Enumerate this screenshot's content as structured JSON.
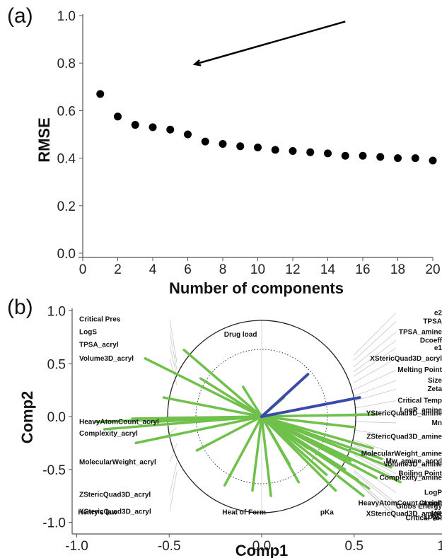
{
  "panels": {
    "a_label": "(a)",
    "b_label": "(b)"
  },
  "chart_data": [
    {
      "type": "scatter",
      "panel": "(a)",
      "xlabel": "Number of components",
      "ylabel": "RMSE",
      "xlim": [
        0,
        20
      ],
      "ylim": [
        0,
        1.0
      ],
      "x_ticks": [
        0,
        2,
        4,
        6,
        8,
        10,
        12,
        14,
        16,
        18,
        20
      ],
      "y_ticks": [
        0.0,
        0.2,
        0.4,
        0.6,
        0.8,
        1.0
      ],
      "y_tick_labels": [
        "0.0",
        "0.2",
        "0.4",
        "0.6",
        "0.8",
        "1.0"
      ],
      "x": [
        1,
        2,
        3,
        4,
        5,
        6,
        7,
        8,
        9,
        10,
        11,
        12,
        13,
        14,
        15,
        16,
        17,
        18,
        19,
        20
      ],
      "y": [
        0.67,
        0.575,
        0.54,
        0.53,
        0.52,
        0.5,
        0.47,
        0.46,
        0.45,
        0.445,
        0.435,
        0.43,
        0.425,
        0.42,
        0.41,
        0.41,
        0.405,
        0.4,
        0.4,
        0.39
      ],
      "arrow": {
        "from": [
          15,
          0.975
        ],
        "to": [
          6.4,
          0.795
        ]
      },
      "colors": {
        "marker": "#000000",
        "axis": "#555555"
      }
    },
    {
      "type": "biplot",
      "panel": "(b)",
      "xlabel": "Comp1",
      "ylabel": "Comp2",
      "xlim": [
        -1.0,
        1.0
      ],
      "ylim": [
        -1.0,
        1.0
      ],
      "x_ticks": [
        -1.0,
        -0.5,
        0.0,
        0.5,
        1.0
      ],
      "y_ticks": [
        -1.0,
        -0.5,
        0.0,
        0.5,
        1.0
      ],
      "x_tick_labels": [
        "-1.0",
        "-0.5",
        "0.0",
        "0.5",
        "1.0"
      ],
      "y_tick_labels": [
        "-1.0",
        "-0.5",
        "0.0",
        "0.5",
        "1.0"
      ],
      "circles": [
        1.0,
        0.7
      ],
      "colors": {
        "green": "#70c04c",
        "blue": "#3a4aa8",
        "leader": "#c8c8c8",
        "circle": "#222222"
      },
      "loadings_blue": [
        {
          "x": 0.25,
          "y": 0.4
        },
        {
          "x": 0.53,
          "y": 0.18
        }
      ],
      "loadings_green": [
        {
          "x": -0.63,
          "y": 0.55
        },
        {
          "x": -0.42,
          "y": 0.63
        },
        {
          "x": -0.33,
          "y": 0.36
        },
        {
          "x": -0.53,
          "y": 0.18
        },
        {
          "x": -0.85,
          "y": -0.12
        },
        {
          "x": -0.9,
          "y": -0.05
        },
        {
          "x": -0.7,
          "y": -0.02
        },
        {
          "x": -0.6,
          "y": -0.05
        },
        {
          "x": -0.68,
          "y": -0.25
        },
        {
          "x": -0.35,
          "y": -0.32
        },
        {
          "x": -0.1,
          "y": 0.28
        },
        {
          "x": -0.2,
          "y": -0.65
        },
        {
          "x": -0.05,
          "y": -0.7
        },
        {
          "x": 0.05,
          "y": -0.75
        },
        {
          "x": 0.15,
          "y": -0.45
        },
        {
          "x": 0.12,
          "y": 0.18
        },
        {
          "x": 0.3,
          "y": -0.2
        },
        {
          "x": 0.38,
          "y": -0.35
        },
        {
          "x": 0.45,
          "y": -0.5
        },
        {
          "x": 0.52,
          "y": -0.6
        },
        {
          "x": 0.58,
          "y": -0.68
        },
        {
          "x": 0.62,
          "y": -0.58
        },
        {
          "x": 0.75,
          "y": -0.62
        },
        {
          "x": 0.55,
          "y": -0.75
        },
        {
          "x": 0.48,
          "y": -0.42
        },
        {
          "x": 0.6,
          "y": -0.3
        },
        {
          "x": 0.5,
          "y": -0.1
        },
        {
          "x": 0.62,
          "y": 0.02
        },
        {
          "x": 0.35,
          "y": -0.55
        },
        {
          "x": 0.25,
          "y": -0.3
        },
        {
          "x": 0.2,
          "y": -0.62
        },
        {
          "x": 0.4,
          "y": -0.7
        },
        {
          "x": 0.65,
          "y": -0.4
        },
        {
          "x": 0.7,
          "y": -0.48
        }
      ],
      "labels_left": [
        {
          "text": "Critical Pres",
          "y": 0.9
        },
        {
          "text": "LogS",
          "y": 0.78
        },
        {
          "text": "TPSA_acryl",
          "y": 0.66
        },
        {
          "text": "Volume3D_acryl",
          "y": 0.53
        },
        {
          "text": "HeavyAtomCount_acryl",
          "y": -0.07
        },
        {
          "text": "Complexity_acryl",
          "y": -0.18
        },
        {
          "text": "MolecularWeight_acryl",
          "y": -0.45
        },
        {
          "text": "ZStericQuad3D_acryl",
          "y": -0.76
        },
        {
          "text": "YStericQuad3D_acryl",
          "y": -0.92
        }
      ],
      "labels_bottom": [
        {
          "text": "Henry's law",
          "x": -0.84
        },
        {
          "text": "Heat of Form",
          "x": -0.06
        },
        {
          "text": "pKa",
          "x": 0.47
        }
      ],
      "labels_top": [
        {
          "text": "Drug load",
          "x": -0.28
        }
      ],
      "labels_right": [
        {
          "text": "e2",
          "y": 0.96
        },
        {
          "text": "TPSA",
          "y": 0.88
        },
        {
          "text": "TPSA_amine",
          "y": 0.78
        },
        {
          "text": "Dcoeff",
          "y": 0.7
        },
        {
          "text": "e1",
          "y": 0.63
        },
        {
          "text": "XStericQuad3D_acryl",
          "y": 0.53
        },
        {
          "text": "Melting Point",
          "y": 0.42
        },
        {
          "text": "Size",
          "y": 0.32
        },
        {
          "text": "Zeta",
          "y": 0.24
        },
        {
          "text": "Critical Temp",
          "y": 0.13
        },
        {
          "text": "YStericQuad3D_amine",
          "y": 0.01
        },
        {
          "text": "LogP_amine",
          "y": 0.04
        },
        {
          "text": "Mn",
          "y": -0.08
        },
        {
          "text": "ZStericQuad3D_amine",
          "y": -0.21
        },
        {
          "text": "MolecularWeight_amine",
          "y": -0.37
        },
        {
          "text": "Mw_amine_acryl",
          "y": -0.44
        },
        {
          "text": "Volume3D_amine",
          "y": -0.47
        },
        {
          "text": "Boiling Point",
          "y": -0.56
        },
        {
          "text": "Complexity_amine",
          "y": -0.6
        },
        {
          "text": "LogP",
          "y": -0.74
        },
        {
          "text": "HeavyAtomCount_amine",
          "y": -0.84
        },
        {
          "text": "Gibbs Energy",
          "y": -0.87
        },
        {
          "text": "CLogP",
          "y": -0.84
        },
        {
          "text": "MR",
          "y": -0.94
        },
        {
          "text": "Critical Vol",
          "y": -0.98
        },
        {
          "text": "XStericQuad3D_amine",
          "y": -0.94
        },
        {
          "text": "LogD",
          "y": -0.97
        }
      ]
    }
  ]
}
